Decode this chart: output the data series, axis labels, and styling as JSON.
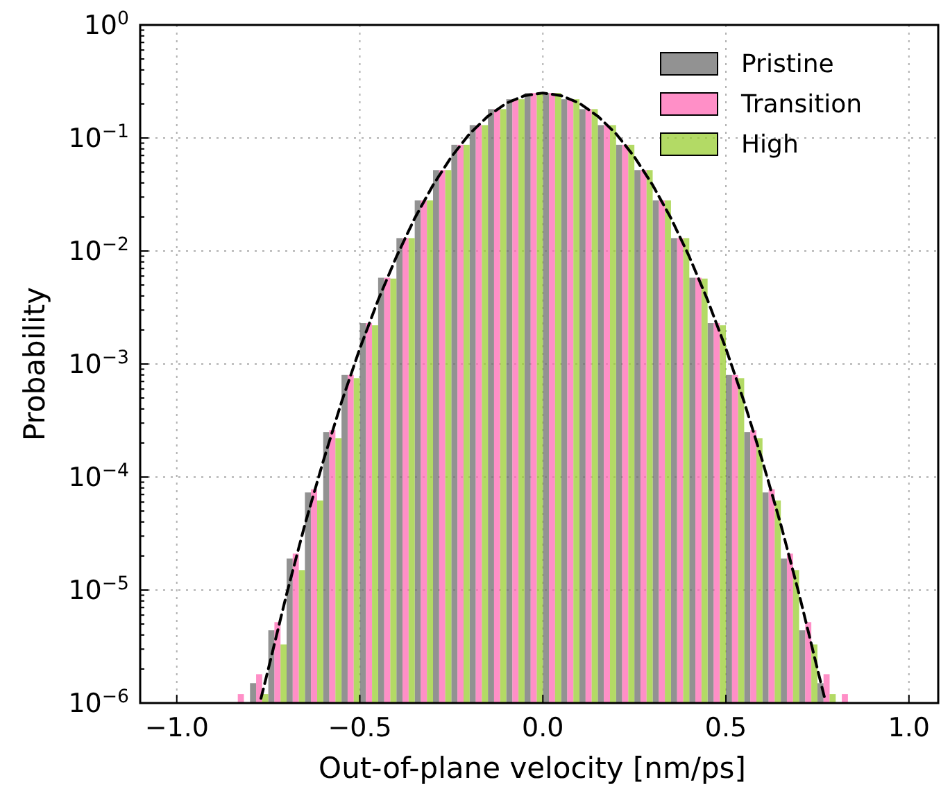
{
  "chart_data": {
    "type": "histogram",
    "xlabel": "Out-of-plane velocity [nm/ps]",
    "ylabel": "Probability",
    "log": "y",
    "grid": true,
    "legend": "top right",
    "xlim": [
      -1.1,
      1.08
    ],
    "xticks": [
      {
        "value": -1,
        "label": "−1.0"
      },
      {
        "value": -0.5,
        "label": "−0.5"
      },
      {
        "value": 0,
        "label": "0.0"
      },
      {
        "value": 0.5,
        "label": "0.5"
      },
      {
        "value": 1,
        "label": "1.0"
      }
    ],
    "ylim": [
      1e-06,
      1
    ],
    "yticks": [
      {
        "value": 1e-06,
        "label": "10$^{−6}$"
      },
      {
        "value": 1e-05,
        "label": "10$^{−5}$"
      },
      {
        "value": 0.0001,
        "label": "10$^{−4}$"
      },
      {
        "value": 0.001,
        "label": "10$^{−3}$"
      },
      {
        "value": 0.01,
        "label": "10$^{−2}$"
      },
      {
        "value": 0.1,
        "label": "10$^{−1}$"
      },
      {
        "value": 1,
        "label": "10$^{0}$"
      }
    ],
    "bins": [
      -0.85,
      -0.8,
      -0.75,
      -0.7,
      -0.65,
      -0.6,
      -0.55,
      -0.5,
      -0.45,
      -0.4,
      -0.35,
      -0.3,
      -0.25,
      -0.2,
      -0.15,
      -0.1,
      -0.05,
      0,
      0.05,
      0.1,
      0.15,
      0.2,
      0.25,
      0.3,
      0.35,
      0.4,
      0.45,
      0.5,
      0.55,
      0.6,
      0.65,
      0.7,
      0.75,
      0.8,
      0.85
    ],
    "series": [
      {
        "name": "Pristine",
        "color": "#6e6e6e",
        "values": [
          null,
          1.5e-06,
          4.4e-06,
          1.9e-05,
          7.3e-05,
          0.00025,
          0.0008,
          0.0023,
          0.0058,
          0.013,
          0.028,
          0.052,
          0.087,
          0.13,
          0.18,
          0.22,
          0.25,
          0.25,
          0.22,
          0.18,
          0.13,
          0.087,
          0.052,
          0.028,
          0.013,
          0.0058,
          0.0023,
          0.0008,
          0.00025,
          7.3e-05,
          1.9e-05,
          4.4e-06,
          1.5e-06,
          null
        ]
      },
      {
        "name": "Transition",
        "color": "#ff69b4",
        "values": [
          1.2e-06,
          1.8e-06,
          5.2e-06,
          2.1e-05,
          7.8e-05,
          0.00026,
          0.0008,
          0.0023,
          0.0058,
          0.013,
          0.028,
          0.052,
          0.087,
          0.13,
          0.18,
          0.22,
          0.25,
          0.25,
          0.22,
          0.18,
          0.13,
          0.087,
          0.052,
          0.028,
          0.013,
          0.0058,
          0.0023,
          0.0008,
          0.00026,
          7.8e-05,
          2.1e-05,
          5.2e-06,
          1.8e-06,
          1.2e-06
        ]
      },
      {
        "name": "High",
        "color": "#9acd32",
        "values": [
          null,
          1.2e-06,
          3.3e-06,
          1.5e-05,
          6.2e-05,
          0.00022,
          0.00075,
          0.0022,
          0.0057,
          0.013,
          0.028,
          0.052,
          0.087,
          0.13,
          0.18,
          0.22,
          0.25,
          0.25,
          0.22,
          0.18,
          0.13,
          0.087,
          0.052,
          0.028,
          0.013,
          0.0057,
          0.0022,
          0.00075,
          0.00022,
          6.2e-05,
          1.5e-05,
          3.3e-06,
          1.2e-06,
          null
        ]
      },
      {
        "type": "line",
        "color": "#000000",
        "line_style": "dashed",
        "marker": "none",
        "x": [
          -0.77,
          -0.75,
          -0.7,
          -0.65,
          -0.6,
          -0.55,
          -0.5,
          -0.45,
          -0.4,
          -0.35,
          -0.3,
          -0.25,
          -0.2,
          -0.15,
          -0.1,
          -0.05,
          0,
          0.05,
          0.1,
          0.15,
          0.2,
          0.25,
          0.3,
          0.35,
          0.4,
          0.45,
          0.5,
          0.55,
          0.6,
          0.65,
          0.7,
          0.75,
          0.77
        ],
        "values": [
          1.1e-06,
          2e-06,
          9.2e-06,
          3.8e-05,
          0.000138,
          0.00046,
          0.00137,
          0.00368,
          0.00891,
          0.0195,
          0.0383,
          0.068,
          0.109,
          0.156,
          0.203,
          0.237,
          0.25,
          0.237,
          0.203,
          0.156,
          0.109,
          0.068,
          0.0383,
          0.0195,
          0.00891,
          0.00368,
          0.00137,
          0.00046,
          0.000138,
          3.8e-05,
          9.2e-06,
          2e-06,
          1.1e-06
        ]
      }
    ]
  }
}
